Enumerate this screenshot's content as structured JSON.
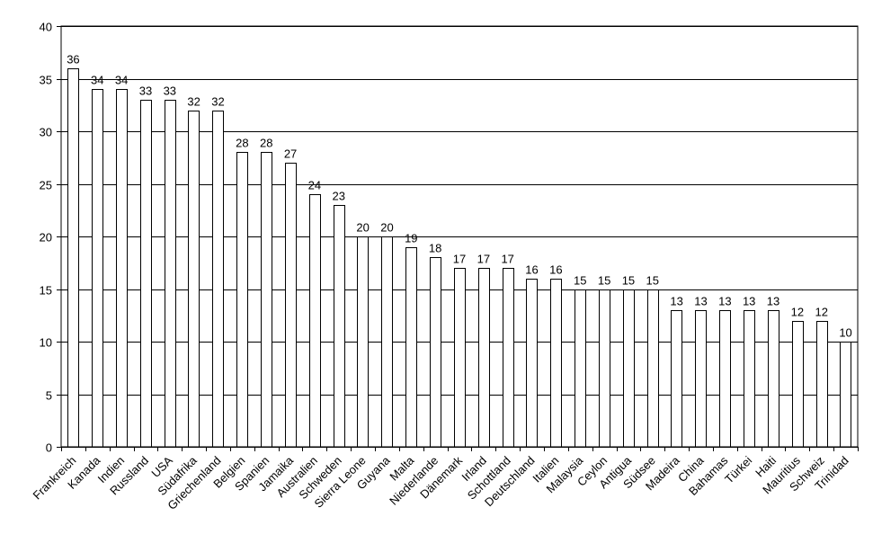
{
  "chart_data": {
    "type": "bar",
    "categories": [
      "Frankreich",
      "Kanada",
      "Indien",
      "Russland",
      "USA",
      "Südafrika",
      "Griechenland",
      "Belgien",
      "Spanien",
      "Jamaika",
      "Australien",
      "Schweden",
      "Sierra Leone",
      "Guyana",
      "Malta",
      "Niederlande",
      "Dänemark",
      "Irland",
      "Schottland",
      "Deutschland",
      "Italien",
      "Malaysia",
      "Ceylon",
      "Antigua",
      "Südsee",
      "Madeira",
      "China",
      "Bahamas",
      "Türkei",
      "Haiti",
      "Mauritius",
      "Schweiz",
      "Trinidad"
    ],
    "values": [
      36,
      34,
      34,
      33,
      33,
      32,
      32,
      28,
      28,
      27,
      24,
      23,
      20,
      20,
      19,
      18,
      17,
      17,
      17,
      16,
      16,
      15,
      15,
      15,
      15,
      13,
      13,
      13,
      13,
      13,
      12,
      12,
      10
    ],
    "value_labels": [
      "36",
      "34",
      "34",
      "33",
      "33",
      "32",
      "32",
      "28",
      "28",
      "27",
      "24",
      "23",
      "20",
      "20",
      "19",
      "18",
      "17",
      "17",
      "17",
      "16",
      "16",
      "15",
      "15",
      "15",
      "15",
      "13",
      "13",
      "13",
      "13",
      "13",
      "12",
      "12",
      "10"
    ],
    "yticks": [
      "0",
      "5",
      "10",
      "15",
      "20",
      "25",
      "30",
      "35",
      "40"
    ],
    "ylim": [
      0,
      40
    ],
    "title": "",
    "xlabel": "",
    "ylabel": "",
    "grid": true,
    "legend": "none",
    "bar_fill": "#ffffff",
    "line_color": "#000000"
  }
}
